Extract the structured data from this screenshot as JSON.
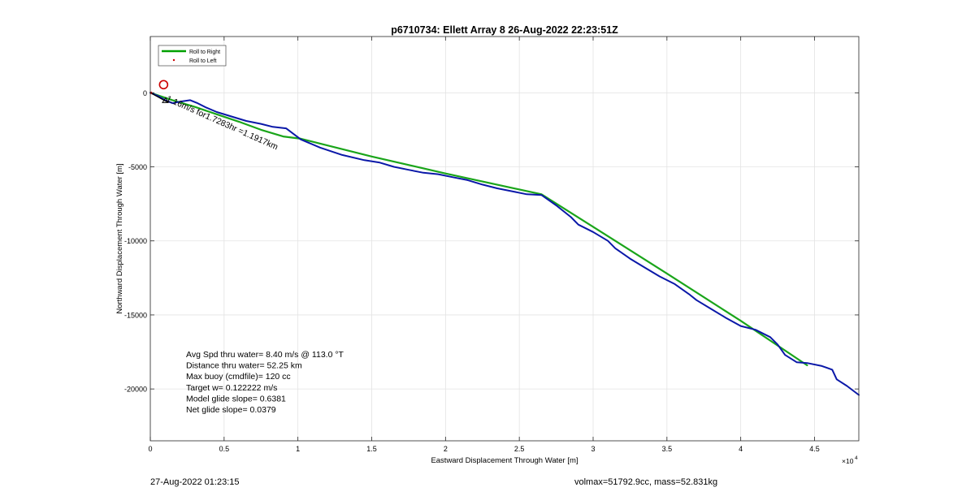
{
  "footer": {
    "timestamp": "27-Aug-2022 01:23:15",
    "vol_mass": "volmax=51792.9cc, mass=52.831kg"
  },
  "chart_data": {
    "type": "line",
    "title": "p6710734: Ellett Array 8 26-Aug-2022 22:23:51Z",
    "xlabel": "Eastward Displacement Through Water [m]",
    "ylabel": "Northward Displacement Through Water [m]",
    "x_exponent_label": "×10",
    "x_exponent_power": "4",
    "xlim": [
      0,
      48000
    ],
    "ylim": [
      -23500,
      3800
    ],
    "x_ticks": [
      0,
      5000,
      10000,
      15000,
      20000,
      25000,
      30000,
      35000,
      40000,
      45000
    ],
    "x_tick_labels": [
      "0",
      "0.5",
      "1",
      "1.5",
      "2",
      "2.5",
      "3",
      "3.5",
      "4",
      "4.5"
    ],
    "y_ticks": [
      0,
      -5000,
      -10000,
      -15000,
      -20000
    ],
    "y_tick_labels": [
      "0",
      "-5000",
      "-10000",
      "-15000",
      "-20000"
    ],
    "grid": true,
    "legend_placement": "top-left",
    "legend": [
      {
        "label": "Roll to Right",
        "color": "#00a000",
        "style": "line"
      },
      {
        "label": "Roll to Left",
        "color": "#cc0000",
        "style": "dot"
      }
    ],
    "series": [
      {
        "name": "Roll to Right",
        "color": "#1aa51a",
        "x": [
          0,
          1500,
          3000,
          4500,
          6000,
          7500,
          9000,
          10200,
          15000,
          20000,
          26500,
          30000,
          35000,
          40000,
          44500
        ],
        "y": [
          0,
          -500,
          -950,
          -1450,
          -1950,
          -2500,
          -2950,
          -3100,
          -4300,
          -5450,
          -6850,
          -9050,
          -12200,
          -15400,
          -18400
        ]
      },
      {
        "name": "",
        "color": "#0a18a8",
        "x": [
          0,
          500,
          1000,
          1500,
          2000,
          2700,
          3200,
          3800,
          4500,
          5500,
          6500,
          7500,
          8300,
          9200,
          10200,
          11500,
          13000,
          14500,
          15500,
          16500,
          17500,
          18500,
          19500,
          20500,
          21500,
          22500,
          23500,
          24500,
          25500,
          26500,
          27500,
          28500,
          29000,
          30000,
          31000,
          31500,
          32500,
          33500,
          34500,
          35500,
          36500,
          37000,
          38000,
          39000,
          40000,
          41000,
          42000,
          42500,
          43000,
          43800,
          44500,
          45500,
          46200,
          46500,
          47200,
          48000
        ],
        "y": [
          0,
          -200,
          -500,
          -700,
          -600,
          -500,
          -700,
          -1000,
          -1300,
          -1600,
          -1900,
          -2100,
          -2300,
          -2400,
          -3150,
          -3700,
          -4200,
          -4550,
          -4700,
          -5000,
          -5200,
          -5400,
          -5500,
          -5700,
          -5900,
          -6200,
          -6450,
          -6650,
          -6850,
          -6900,
          -7600,
          -8400,
          -8900,
          -9400,
          -10000,
          -10500,
          -11200,
          -11800,
          -12400,
          -12900,
          -13600,
          -14000,
          -14600,
          -15200,
          -15750,
          -16000,
          -16500,
          -17000,
          -17700,
          -18200,
          -18250,
          -18450,
          -18700,
          -19350,
          -19800,
          -20400
        ]
      }
    ],
    "start_marker": {
      "x": 900,
      "y": 550,
      "color": "#cc0000"
    },
    "annotation": "1.16m/s for1.7283hr =1.1917km",
    "stats": [
      "Avg Spd thru water=  8.40 m/s @ 113.0 °T",
      "Distance thru water= 52.25 km",
      "Max buoy (cmdfile)= 120 cc",
      "Target w= 0.122222 m/s",
      "Model glide slope= 0.6381",
      "Net glide slope= 0.0379"
    ]
  }
}
